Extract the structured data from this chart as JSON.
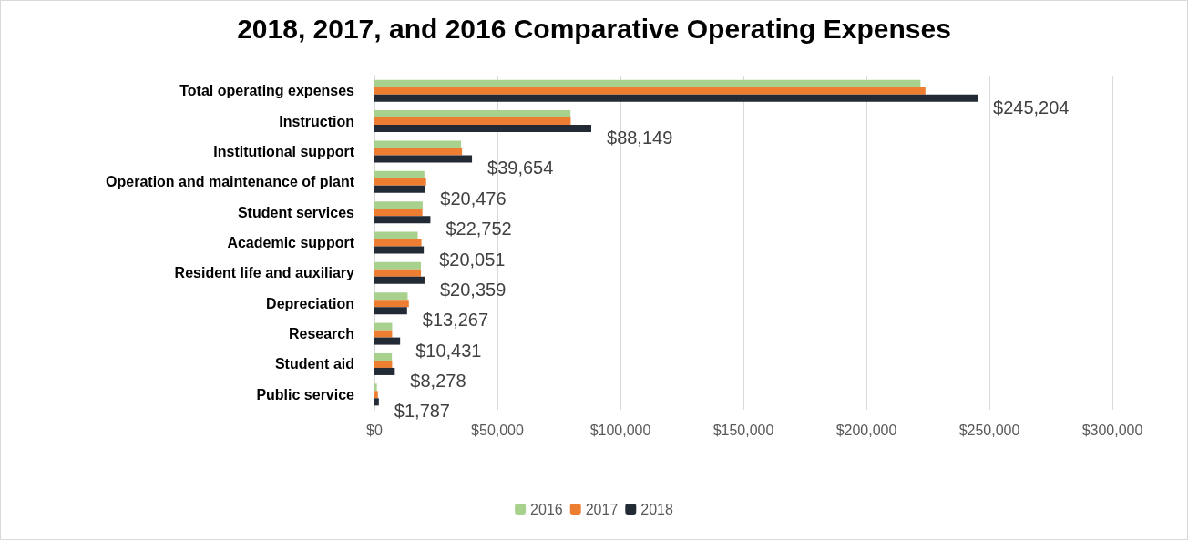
{
  "chart_data": {
    "type": "bar",
    "orientation": "horizontal",
    "title": "2018, 2017, and 2016 Comparative Operating Expenses",
    "categories": [
      "Total operating expenses",
      "Instruction",
      "Institutional support",
      "Operation and maintenance of plant",
      "Student services",
      "Academic support",
      "Resident life and auxiliary",
      "Depreciation",
      "Research",
      "Student aid",
      "Public service"
    ],
    "series": [
      {
        "name": "2016",
        "color": "#a9d18e",
        "values": [
          222000,
          79700,
          35200,
          20300,
          19600,
          17600,
          18900,
          13500,
          7200,
          7100,
          1000
        ]
      },
      {
        "name": "2017",
        "color": "#ed7d31",
        "values": [
          224000,
          79800,
          35600,
          21000,
          19500,
          19100,
          18900,
          14000,
          7200,
          7200,
          1400
        ]
      },
      {
        "name": "2018",
        "color": "#222a35",
        "values": [
          245204,
          88149,
          39654,
          20476,
          22752,
          20051,
          20359,
          13267,
          10431,
          8278,
          1787
        ],
        "value_labels": [
          "$245,204",
          "$88,149",
          "$39,654",
          "$20,476",
          "$22,752",
          "$20,051",
          "$20,359",
          "$13,267",
          "$10,431",
          "$8,278",
          "$1,787"
        ]
      }
    ],
    "xlim": [
      0,
      300000
    ],
    "xticks": [
      {
        "value": 0,
        "label": "$0"
      },
      {
        "value": 50000,
        "label": "$50,000"
      },
      {
        "value": 100000,
        "label": "$100,000"
      },
      {
        "value": 150000,
        "label": "$150,000"
      },
      {
        "value": 200000,
        "label": "$200,000"
      },
      {
        "value": 250000,
        "label": "$250,000"
      },
      {
        "value": 300000,
        "label": "$300,000"
      }
    ],
    "grid": "x",
    "legend": "bottom"
  }
}
